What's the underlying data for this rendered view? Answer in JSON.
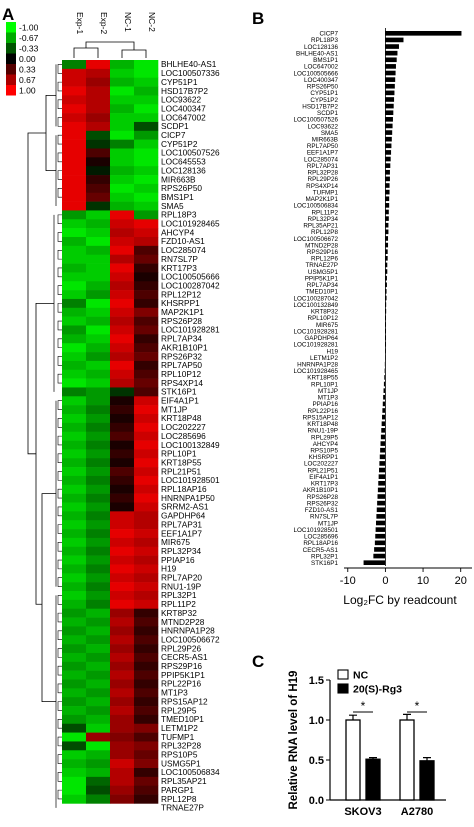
{
  "panels": {
    "a": "A",
    "b": "B",
    "c": "C"
  },
  "heatmap": {
    "columns": [
      "Exp-1",
      "Exp-2",
      "NC-1",
      "NC-2"
    ],
    "scale_values": [
      -1.0,
      -0.67,
      -0.33,
      0.0,
      0.33,
      0.67,
      1.0
    ],
    "scale_labels": [
      "-1.00",
      "-0.67",
      "-0.33",
      "0.00",
      "0.33",
      "0.67",
      "1.00"
    ],
    "colors": {
      "low": "#00ff00",
      "mid": "#000000",
      "high": "#ff0000"
    }
  },
  "chart_data": [
    {
      "type": "heatmap",
      "columns": [
        "Exp-1",
        "Exp-2",
        "NC-1",
        "NC-2"
      ],
      "rows": [
        "BHLHE40-AS1",
        "LOC100507336",
        "CYP51P1",
        "HSD17B7P2",
        "LOC93622",
        "LOC400347",
        "LOC647002",
        "SCDP1",
        "CICP7",
        "CYP51P2",
        "LOC100507526",
        "LOC645553",
        "LOC128136",
        "MIR663B",
        "RPS26P50",
        "BMS1P1",
        "SMA5",
        "RPL18P3",
        "LOC101928465",
        "AHCYP4",
        "FZD10-AS1",
        "LOC285074",
        "RN7SL7P",
        "KRT17P3",
        "LOC100505666",
        "LOC100287042",
        "RPL12P12",
        "KHSRPP1",
        "MAP2K1P1",
        "RPS26P28",
        "LOC101928281",
        "RPL7AP34",
        "AKR1B10P1",
        "RPS26P32",
        "RPL7AP50",
        "RPL10P12",
        "RPS4XP14",
        "STK16P1",
        "EIF4A1P1",
        "MT1JP",
        "KRT18P48",
        "LOC202227",
        "LOC285696",
        "LOC100132849",
        "RPL10P1",
        "KRT18P55",
        "RPL21P51",
        "LOC101928501",
        "RPL18AP16",
        "HNRNPA1P50",
        "SRRM2-AS1",
        "GAPDHP64",
        "RPL7AP31",
        "EEF1A1P7",
        "MIR675",
        "RPL32P34",
        "PPIAP16",
        "H19",
        "RPL7AP20",
        "RNU1-19P",
        "RPL32P1",
        "RPL11P2",
        "KRT8P32",
        "MTND2P28",
        "HNRNPA1P28",
        "LOC100506672",
        "RPL29P26",
        "CECR5-AS1",
        "RPS29P16",
        "PPIP5K1P1",
        "RPL22P16",
        "MT1P3",
        "RPS15AP12",
        "RPL29P5",
        "TMED10P1",
        "LETM1P2",
        "TUFMP1",
        "RPL32P28",
        "RPS10P5",
        "USMG5P1",
        "LOC100506834",
        "RPL35AP21",
        "PARGP1",
        "RPL12P8",
        "TRNAE27P"
      ],
      "values": [
        [
          -0.5,
          0.9,
          -0.7,
          -0.9
        ],
        [
          0.8,
          0.7,
          -0.8,
          -0.9
        ],
        [
          0.8,
          0.6,
          -0.7,
          -0.8
        ],
        [
          0.9,
          0.7,
          -0.9,
          -0.7
        ],
        [
          0.8,
          0.7,
          -0.8,
          -0.8
        ],
        [
          0.9,
          0.7,
          -0.7,
          -0.9
        ],
        [
          0.8,
          0.6,
          -0.8,
          -0.8
        ],
        [
          0.9,
          0.7,
          -0.8,
          -0.3
        ],
        [
          0.9,
          -0.3,
          -0.9,
          -0.6
        ],
        [
          0.9,
          -0.2,
          -0.5,
          -0.8
        ],
        [
          0.9,
          0.3,
          -0.8,
          -0.9
        ],
        [
          0.9,
          0.1,
          -0.8,
          -0.9
        ],
        [
          0.9,
          -0.1,
          -0.7,
          -0.8
        ],
        [
          0.9,
          0.2,
          -0.8,
          -0.9
        ],
        [
          0.9,
          0.3,
          -0.9,
          -0.8
        ],
        [
          0.9,
          0.4,
          -0.8,
          -0.9
        ],
        [
          0.9,
          -0.2,
          -0.7,
          -0.8
        ],
        [
          -0.6,
          -0.8,
          0.9,
          -0.6
        ],
        [
          -0.8,
          -0.7,
          0.8,
          0.9
        ],
        [
          -0.9,
          -0.8,
          0.7,
          0.8
        ],
        [
          -0.7,
          -0.9,
          0.8,
          0.7
        ],
        [
          -0.8,
          -0.7,
          0.9,
          0.3
        ],
        [
          -0.8,
          -0.8,
          0.7,
          0.4
        ],
        [
          -0.7,
          -0.8,
          0.9,
          0.2
        ],
        [
          -0.8,
          -0.8,
          0.8,
          0.1
        ],
        [
          -0.9,
          -0.7,
          0.7,
          0.2
        ],
        [
          -0.8,
          -0.6,
          0.8,
          0.3
        ],
        [
          -0.5,
          -0.9,
          0.9,
          0.2
        ],
        [
          -0.7,
          -0.8,
          0.8,
          0.5
        ],
        [
          -0.8,
          -0.7,
          0.7,
          0.3
        ],
        [
          -0.6,
          -0.9,
          0.8,
          0.4
        ],
        [
          -0.7,
          -0.8,
          0.9,
          0.2
        ],
        [
          -0.9,
          -0.7,
          0.8,
          0.3
        ],
        [
          -0.8,
          -0.6,
          0.7,
          0.4
        ],
        [
          -0.7,
          -0.8,
          0.9,
          0.2
        ],
        [
          -0.8,
          -0.7,
          0.8,
          0.3
        ],
        [
          -0.9,
          -0.8,
          0.7,
          0.4
        ],
        [
          -0.5,
          -0.6,
          -0.2,
          0.3
        ],
        [
          -0.8,
          -0.6,
          0.1,
          0.8
        ],
        [
          -0.7,
          -0.5,
          0.2,
          0.9
        ],
        [
          -0.8,
          -0.6,
          0.1,
          0.8
        ],
        [
          -0.7,
          -0.5,
          0.2,
          0.9
        ],
        [
          -0.8,
          -0.6,
          0.3,
          0.8
        ],
        [
          -0.7,
          -0.5,
          0.1,
          0.9
        ],
        [
          -0.8,
          -0.6,
          0.2,
          0.8
        ],
        [
          -0.7,
          -0.5,
          0.1,
          0.9
        ],
        [
          -0.8,
          -0.6,
          0.3,
          0.8
        ],
        [
          -0.7,
          -0.5,
          0.2,
          0.9
        ],
        [
          -0.8,
          -0.6,
          0.1,
          0.8
        ],
        [
          -0.7,
          -0.5,
          0.2,
          0.9
        ],
        [
          -0.8,
          -0.6,
          0.1,
          0.8
        ],
        [
          -0.7,
          -0.5,
          0.8,
          0.7
        ],
        [
          -0.8,
          -0.6,
          0.8,
          0.7
        ],
        [
          -0.7,
          -0.5,
          0.9,
          0.8
        ],
        [
          -0.8,
          -0.6,
          0.8,
          0.7
        ],
        [
          -0.7,
          -0.5,
          0.9,
          0.8
        ],
        [
          -0.8,
          -0.6,
          0.8,
          0.7
        ],
        [
          -0.7,
          -0.5,
          0.9,
          0.8
        ],
        [
          -0.8,
          -0.6,
          0.8,
          0.7
        ],
        [
          -0.7,
          -0.5,
          0.9,
          0.8
        ],
        [
          -0.8,
          -0.6,
          0.8,
          0.7
        ],
        [
          -0.7,
          -0.5,
          0.9,
          0.8
        ],
        [
          -0.6,
          -0.7,
          0.6,
          0.2
        ],
        [
          -0.7,
          -0.6,
          0.7,
          0.3
        ],
        [
          -0.6,
          -0.7,
          0.6,
          0.2
        ],
        [
          -0.7,
          -0.6,
          0.7,
          0.3
        ],
        [
          -0.6,
          -0.7,
          0.6,
          0.2
        ],
        [
          -0.7,
          -0.6,
          0.7,
          0.3
        ],
        [
          -0.6,
          -0.7,
          0.6,
          0.2
        ],
        [
          -0.7,
          -0.6,
          0.7,
          0.3
        ],
        [
          -0.6,
          -0.7,
          0.6,
          0.2
        ],
        [
          -0.7,
          -0.6,
          0.7,
          0.3
        ],
        [
          -0.6,
          -0.7,
          0.6,
          0.2
        ],
        [
          -0.7,
          -0.6,
          0.7,
          0.3
        ],
        [
          -0.6,
          -0.7,
          0.6,
          0.2
        ],
        [
          -0.3,
          -0.8,
          0.6,
          0.5
        ],
        [
          -0.9,
          0.6,
          0.5,
          0.3
        ],
        [
          -0.3,
          -0.9,
          0.6,
          0.5
        ],
        [
          -0.8,
          -0.7,
          0.6,
          0.4
        ],
        [
          -0.7,
          -0.6,
          0.8,
          0.5
        ],
        [
          -0.8,
          -0.7,
          0.7,
          0.2
        ],
        [
          -0.9,
          -0.4,
          0.7,
          0.4
        ],
        [
          -0.9,
          -0.3,
          0.6,
          0.3
        ],
        [
          -0.8,
          -0.5,
          0.5,
          0.2
        ]
      ],
      "color_scale": {
        "min": -1.0,
        "max": 1.0,
        "low": "#00ff00",
        "mid": "#000000",
        "high": "#ff0000"
      }
    },
    {
      "type": "bar",
      "orientation": "horizontal",
      "categories": [
        "CICP7",
        "RPL18P3",
        "LOC128136",
        "BHLHE40-AS1",
        "BMS1P1",
        "LOC647002",
        "LOC100505666",
        "LOC400347",
        "RPS26P50",
        "CYP51P1",
        "CYP51P2",
        "HSD17B7P2",
        "SCDP1",
        "LOC100507526",
        "LOC93622",
        "SMA5",
        "MIR663B",
        "RPL7AP50",
        "EEF1A1P7",
        "LOC285074",
        "RPL7AP31",
        "RPL32P28",
        "RPL29P26",
        "RPS4XP14",
        "TUFMP1",
        "MAP2K1P1",
        "LOC100506834",
        "RPL11P2",
        "RPL32P34",
        "RPL35AP21",
        "RPL12P8",
        "LOC100506672",
        "MTND2P28",
        "RPS29P16",
        "RPL12P6",
        "TRNAE27P",
        "USMG5P1",
        "PPIP5K1P1",
        "RPL7AP34",
        "TMED10P1",
        "LOC100287042",
        "LOC100132849",
        "KRT8P32",
        "RPL10P12",
        "MIR675",
        "LOC101928281",
        "GAPDHP64",
        "LOC101928281",
        "H19",
        "LETM1P2",
        "HNRNPA1P28",
        "LOC101928465",
        "KRT18P55",
        "RPL10P1",
        "MT1JP",
        "MT1P3",
        "PPIAP16",
        "RPL22P16",
        "RPS15AP12",
        "KRT18P48",
        "RNU1-19P",
        "RPL29P5",
        "AHCYP4",
        "RPS10P5",
        "KHSRPP1",
        "LOC202227",
        "RPL21P51",
        "EIF4A1P1",
        "KRT17P3",
        "AKR1B10P1",
        "RPS26P28",
        "RPS26P32",
        "FZD10-AS1",
        "RN7SL7P",
        "MT1JP",
        "LOC101928501",
        "LOC285696",
        "RPL18AP16",
        "CECR5-AS1",
        "RPL32P1",
        "STK16P1"
      ],
      "values": [
        20.2,
        4.8,
        3.6,
        3.2,
        3.0,
        2.8,
        2.7,
        2.6,
        2.5,
        2.4,
        2.3,
        2.2,
        2.1,
        2.0,
        1.9,
        1.8,
        1.7,
        1.6,
        1.5,
        1.4,
        1.3,
        1.2,
        1.2,
        1.1,
        1.1,
        1.0,
        1.0,
        0.9,
        0.9,
        0.8,
        0.8,
        0.7,
        0.7,
        0.6,
        0.6,
        0.5,
        0.5,
        0.4,
        0.4,
        0.3,
        0.3,
        0.2,
        0.2,
        0.15,
        0.1,
        0.1,
        0.05,
        0.05,
        -0.05,
        -0.1,
        -0.15,
        -0.2,
        -0.3,
        -0.4,
        -0.5,
        -0.6,
        -0.7,
        -0.8,
        -0.9,
        -1.0,
        -1.1,
        -1.2,
        -1.3,
        -1.4,
        -1.5,
        -1.6,
        -1.7,
        -1.8,
        -1.9,
        -2.0,
        -2.1,
        -2.2,
        -2.3,
        -2.4,
        -2.5,
        -2.6,
        -2.7,
        -2.8,
        -3.0,
        -3.2,
        -5.8
      ],
      "xlabel": "Log₂FC by readcount",
      "xticks": [
        -10,
        0,
        10,
        20
      ],
      "xlim": [
        -11,
        23
      ]
    },
    {
      "type": "bar",
      "categories": [
        "SKOV3",
        "A2780"
      ],
      "series": [
        {
          "name": "NC",
          "values": [
            1.0,
            1.0
          ],
          "errors": [
            0.06,
            0.07
          ],
          "color": "#ffffff"
        },
        {
          "name": "20(S)-Rg3",
          "values": [
            0.51,
            0.49
          ],
          "errors": [
            0.02,
            0.04
          ],
          "color": "#000000"
        }
      ],
      "ylabel": "Relative RNA level of H19",
      "yticks": [
        "0.0",
        "0.5",
        "1.0",
        "1.5"
      ],
      "ylim": [
        0,
        1.5
      ],
      "significance": [
        "*",
        "*"
      ],
      "legend_position": "top-left"
    }
  ]
}
